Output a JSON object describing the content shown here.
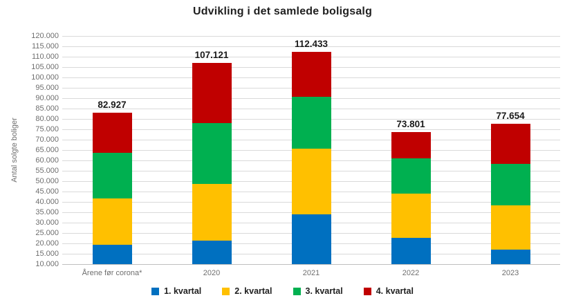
{
  "title": "Udvikling i det samlede boligsalg",
  "y_axis": {
    "label": "Antal solgte boliger",
    "min": 10000,
    "max": 120000,
    "tick_step": 5000,
    "tick_labels": [
      "120.000",
      "115.000",
      "110.000",
      "105.000",
      "100.000",
      "95.000",
      "90.000",
      "85.000",
      "80.000",
      "75.000",
      "70.000",
      "65.000",
      "60.000",
      "55.000",
      "50.000",
      "45.000",
      "40.000",
      "35.000",
      "30.000",
      "25.000",
      "20.000",
      "15.000",
      "10.000"
    ]
  },
  "colors": {
    "q1_blue": "#0070C0",
    "q2_yellow": "#FFC000",
    "q3_green": "#00B050",
    "q4_red": "#C00000",
    "gridline": "#D9D9D9",
    "axis_text": "#6E6E6E",
    "title_text": "#1F1F1F"
  },
  "legend": {
    "items": [
      {
        "label": "1. kvartal",
        "color": "#0070C0"
      },
      {
        "label": "2. kvartal",
        "color": "#FFC000"
      },
      {
        "label": "3. kvartal",
        "color": "#00B050"
      },
      {
        "label": "4. kvartal",
        "color": "#C00000"
      }
    ]
  },
  "chart_data": {
    "type": "bar",
    "stacked": true,
    "title": "Udvikling i det samlede boligsalg",
    "xlabel": "",
    "ylabel": "Antal solgte boliger",
    "ylim": [
      10000,
      120000
    ],
    "grid": true,
    "legend_position": "bottom",
    "categories": [
      "Årene før corona*",
      "2020",
      "2021",
      "2022",
      "2023"
    ],
    "series": [
      {
        "name": "1. kvartal",
        "color": "#0070C0",
        "values": [
          19200,
          21200,
          34000,
          22700,
          17000
        ]
      },
      {
        "name": "2. kvartal",
        "color": "#FFC000",
        "values": [
          22600,
          27600,
          31800,
          21300,
          21200
        ]
      },
      {
        "name": "3. kvartal",
        "color": "#00B050",
        "values": [
          21800,
          29100,
          24800,
          17000,
          20200
        ]
      },
      {
        "name": "4. kvartal",
        "color": "#C00000",
        "values": [
          19327,
          29221,
          21833,
          12801,
          19254
        ]
      }
    ],
    "totals": [
      82927,
      107121,
      112433,
      73801,
      77654
    ],
    "total_labels": [
      "82.927",
      "107.121",
      "112.433",
      "73.801",
      "77.654"
    ]
  }
}
